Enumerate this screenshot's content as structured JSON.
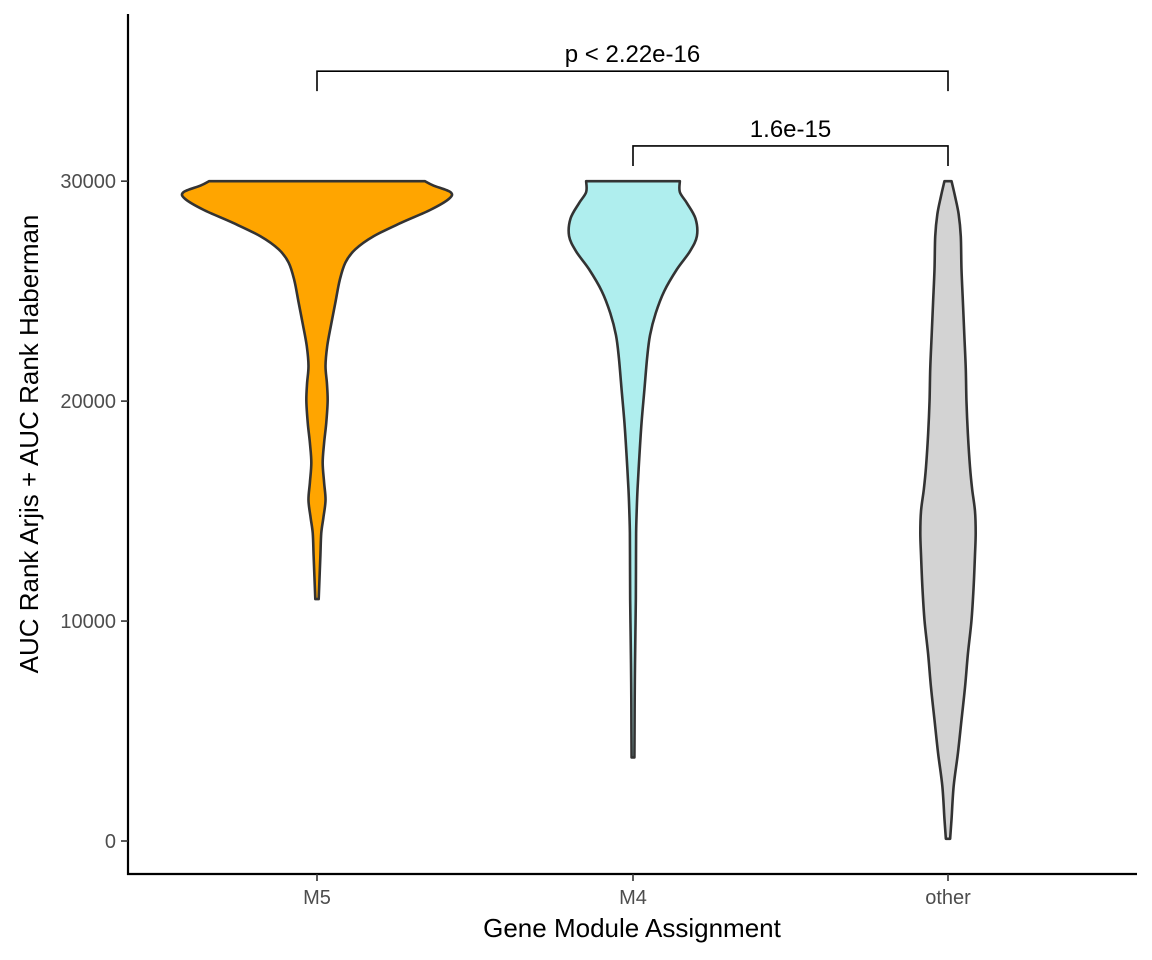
{
  "chart_data": {
    "type": "violin",
    "xlabel": "Gene Module Assignment",
    "ylabel": "AUC Rank Arjis + AUC Rank Haberman",
    "ylim": [
      -1500,
      37600
    ],
    "yticks": [
      0,
      10000,
      20000,
      30000
    ],
    "ytick_labels": [
      "0",
      "10000",
      "20000",
      "30000"
    ],
    "grid": false,
    "legend": "none",
    "categories": [
      "M5",
      "M4",
      "other"
    ],
    "series": [
      {
        "category": "M5",
        "color": "#FFA500",
        "min": 11000,
        "max": 30000,
        "density": [
          [
            11000,
            0.012
          ],
          [
            12000,
            0.018
          ],
          [
            13000,
            0.024
          ],
          [
            14000,
            0.03
          ],
          [
            14700,
            0.045
          ],
          [
            15500,
            0.06
          ],
          [
            16300,
            0.05
          ],
          [
            17200,
            0.04
          ],
          [
            18100,
            0.05
          ],
          [
            19000,
            0.065
          ],
          [
            20000,
            0.075
          ],
          [
            20800,
            0.07
          ],
          [
            21600,
            0.06
          ],
          [
            22500,
            0.072
          ],
          [
            23500,
            0.1
          ],
          [
            24500,
            0.13
          ],
          [
            25500,
            0.16
          ],
          [
            26300,
            0.2
          ],
          [
            26900,
            0.27
          ],
          [
            27500,
            0.4
          ],
          [
            28100,
            0.59
          ],
          [
            28700,
            0.8
          ],
          [
            29200,
            0.93
          ],
          [
            29500,
            0.94
          ],
          [
            29800,
            0.82
          ],
          [
            30000,
            0.76
          ]
        ]
      },
      {
        "category": "M4",
        "color": "#AFEEEE",
        "min": 3800,
        "max": 30000,
        "density": [
          [
            3800,
            0.01
          ],
          [
            5000,
            0.011
          ],
          [
            6500,
            0.012
          ],
          [
            8000,
            0.014
          ],
          [
            9500,
            0.017
          ],
          [
            11000,
            0.02
          ],
          [
            12500,
            0.021
          ],
          [
            14000,
            0.022
          ],
          [
            15000,
            0.026
          ],
          [
            16000,
            0.032
          ],
          [
            17500,
            0.045
          ],
          [
            19000,
            0.06
          ],
          [
            20500,
            0.08
          ],
          [
            22000,
            0.1
          ],
          [
            23000,
            0.12
          ],
          [
            24000,
            0.16
          ],
          [
            25000,
            0.22
          ],
          [
            26000,
            0.31
          ],
          [
            26800,
            0.4
          ],
          [
            27500,
            0.45
          ],
          [
            28300,
            0.44
          ],
          [
            29000,
            0.38
          ],
          [
            29500,
            0.33
          ],
          [
            30000,
            0.33
          ]
        ]
      },
      {
        "category": "other",
        "color": "#D3D3D3",
        "min": 100,
        "max": 30000,
        "density": [
          [
            100,
            0.015
          ],
          [
            1000,
            0.025
          ],
          [
            2500,
            0.04
          ],
          [
            4000,
            0.07
          ],
          [
            5500,
            0.095
          ],
          [
            7000,
            0.12
          ],
          [
            8500,
            0.14
          ],
          [
            10000,
            0.165
          ],
          [
            11500,
            0.18
          ],
          [
            13000,
            0.19
          ],
          [
            14000,
            0.195
          ],
          [
            15000,
            0.19
          ],
          [
            16000,
            0.17
          ],
          [
            17000,
            0.155
          ],
          [
            18500,
            0.14
          ],
          [
            20000,
            0.13
          ],
          [
            21500,
            0.125
          ],
          [
            23000,
            0.115
          ],
          [
            24500,
            0.105
          ],
          [
            26000,
            0.095
          ],
          [
            27500,
            0.09
          ],
          [
            28500,
            0.075
          ],
          [
            29300,
            0.05
          ],
          [
            30000,
            0.025
          ]
        ]
      }
    ],
    "comparisons": [
      {
        "from": "M5",
        "to": "other",
        "label": "p < 2.22e-16",
        "y": 35000
      },
      {
        "from": "M4",
        "to": "other",
        "label": "1.6e-15",
        "y": 31600
      }
    ]
  }
}
